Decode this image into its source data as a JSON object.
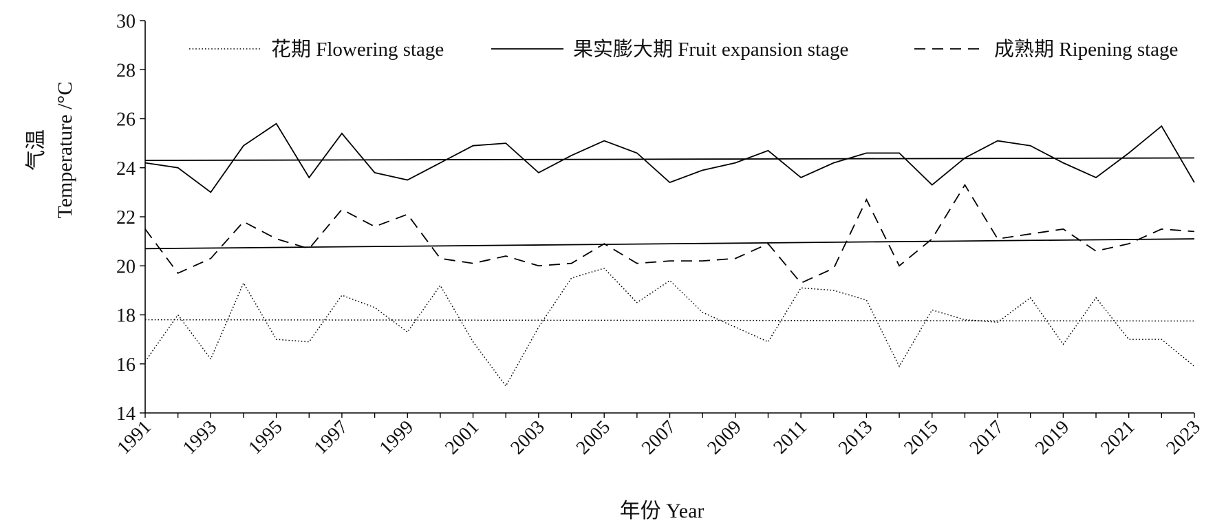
{
  "chart_data": {
    "type": "line",
    "xlabel": "年份 Year",
    "ylabel_line1": "气温",
    "ylabel_line2": "Temperature /°C",
    "ylim": [
      14,
      30
    ],
    "yticks": [
      14,
      16,
      18,
      20,
      22,
      24,
      26,
      28,
      30
    ],
    "x": [
      1991,
      1992,
      1993,
      1994,
      1995,
      1996,
      1997,
      1998,
      1999,
      2000,
      2001,
      2002,
      2003,
      2004,
      2005,
      2006,
      2007,
      2008,
      2009,
      2010,
      2011,
      2012,
      2013,
      2014,
      2015,
      2016,
      2017,
      2018,
      2019,
      2020,
      2021,
      2022,
      2023
    ],
    "xticks": [
      1991,
      1993,
      1995,
      1997,
      1999,
      2001,
      2003,
      2005,
      2007,
      2009,
      2011,
      2013,
      2015,
      2017,
      2019,
      2021,
      2023
    ],
    "legend_position": "top",
    "series": [
      {
        "name": "花期 Flowering stage",
        "style": "dotted",
        "values": [
          16.1,
          18.0,
          16.2,
          19.3,
          17.0,
          16.9,
          18.8,
          18.3,
          17.3,
          19.2,
          16.9,
          15.1,
          17.5,
          19.5,
          19.9,
          18.5,
          19.4,
          18.1,
          17.5,
          16.9,
          19.1,
          19.0,
          18.6,
          15.9,
          18.2,
          17.8,
          17.7,
          18.7,
          16.8,
          18.7,
          17.0,
          17.0,
          15.9
        ],
        "trend": [
          17.8,
          17.75
        ]
      },
      {
        "name": "果实膨大期 Fruit expansion stage",
        "style": "solid",
        "values": [
          24.2,
          24.0,
          23.0,
          24.9,
          25.8,
          23.6,
          25.4,
          23.8,
          23.5,
          24.2,
          24.9,
          25.0,
          23.8,
          24.5,
          25.1,
          24.6,
          23.4,
          23.9,
          24.2,
          24.7,
          23.6,
          24.2,
          24.6,
          24.6,
          23.3,
          24.4,
          25.1,
          24.9,
          24.2,
          23.6,
          24.6,
          25.7,
          23.4
        ],
        "trend": [
          24.3,
          24.4
        ]
      },
      {
        "name": "成熟期 Ripening stage",
        "style": "dashed",
        "values": [
          21.5,
          19.7,
          20.3,
          21.8,
          21.1,
          20.7,
          22.3,
          21.6,
          22.1,
          20.3,
          20.1,
          20.4,
          20.0,
          20.1,
          20.9,
          20.1,
          20.2,
          20.2,
          20.3,
          20.9,
          19.3,
          19.9,
          22.7,
          20.0,
          21.1,
          23.3,
          21.1,
          21.3,
          21.5,
          20.6,
          20.9,
          21.5,
          21.4
        ],
        "trend": [
          20.7,
          21.1
        ]
      }
    ]
  }
}
